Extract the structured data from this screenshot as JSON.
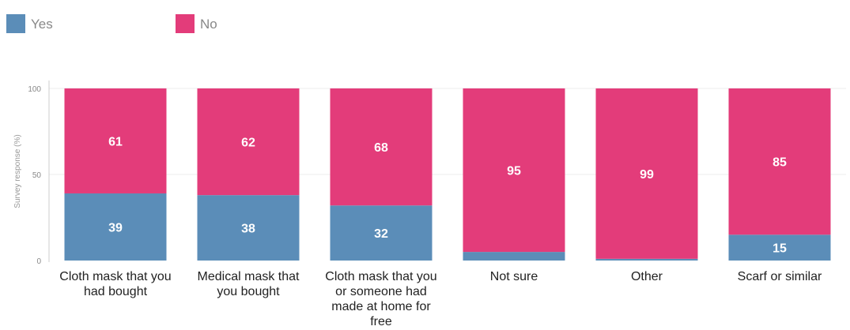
{
  "chart_data": {
    "type": "bar",
    "stacked": true,
    "categories": [
      "Cloth mask that you had bought",
      "Medical mask that you bought",
      "Cloth mask that you or someone had made at home for free",
      "Not sure",
      "Other",
      "Scarf or similar"
    ],
    "category_lines": [
      [
        "Cloth mask that you",
        "had bought"
      ],
      [
        "Medical mask that",
        "you bought"
      ],
      [
        "Cloth mask that you",
        "or someone had",
        "made at home for",
        "free"
      ],
      [
        "Not sure"
      ],
      [
        "Other"
      ],
      [
        "Scarf or similar"
      ]
    ],
    "series": [
      {
        "name": "Yes",
        "color": "#5b8db8",
        "values": [
          39,
          38,
          32,
          5,
          1,
          15
        ],
        "labels": [
          "39",
          "38",
          "32",
          "",
          "",
          "15"
        ]
      },
      {
        "name": "No",
        "color": "#e33c7a",
        "values": [
          61,
          62,
          68,
          95,
          99,
          85
        ],
        "labels": [
          "61",
          "62",
          "68",
          "95",
          "99",
          "85"
        ]
      }
    ],
    "ylabel": "Survey response (%)",
    "ylim": [
      0,
      100
    ],
    "yticks": [
      "0",
      "50",
      "100"
    ],
    "grid": true,
    "legend": "top-left"
  }
}
